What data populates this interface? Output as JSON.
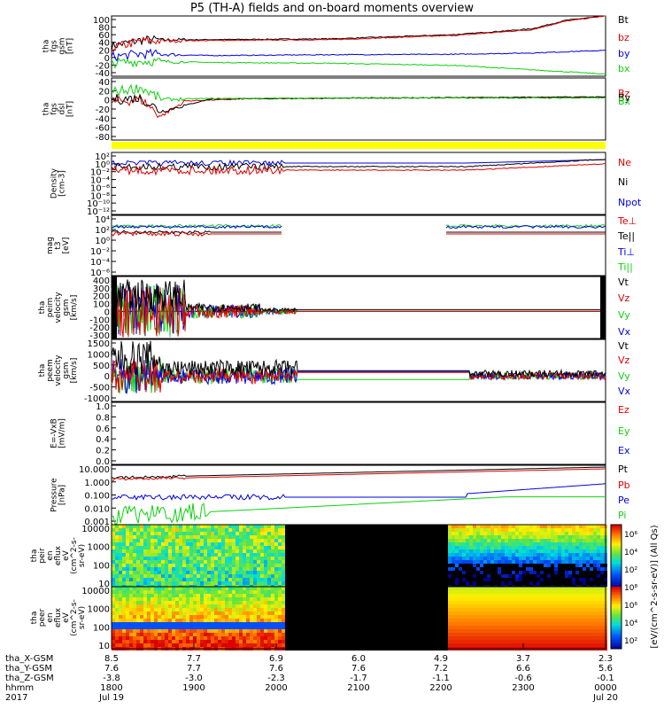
{
  "title": "P5 (TH-A) fields and on-board moments overview",
  "colors": {
    "black": "#000000",
    "red": "#e00000",
    "blue": "#0000e0",
    "green": "#10d010",
    "yellow": "#ffff00"
  },
  "chart_data": [
    {
      "type": "line",
      "panel": "fgs_gsm",
      "ylabel": [
        "tha",
        "fgs",
        "gsm",
        "[nT]"
      ],
      "ylim": [
        -40,
        100
      ],
      "ticks": [
        "100",
        "80",
        "60",
        "40",
        "20",
        "0",
        "-20",
        "-40"
      ],
      "series": [
        {
          "name": "Bt",
          "color": "black",
          "points": [
            [
              0,
              30
            ],
            [
              0.06,
              44
            ],
            [
              0.2,
              45
            ],
            [
              0.45,
              47
            ],
            [
              0.7,
              57
            ],
            [
              0.85,
              70
            ],
            [
              0.92,
              90
            ],
            [
              1,
              100
            ]
          ]
        },
        {
          "name": "bz",
          "color": "red",
          "points": [
            [
              0,
              25
            ],
            [
              0.06,
              42
            ],
            [
              0.2,
              43
            ],
            [
              0.45,
              45
            ],
            [
              0.7,
              55
            ],
            [
              0.85,
              68
            ],
            [
              0.92,
              88
            ],
            [
              1,
              100
            ]
          ]
        },
        {
          "name": "by",
          "color": "blue",
          "points": [
            [
              0,
              5
            ],
            [
              0.06,
              12
            ],
            [
              0.2,
              8
            ],
            [
              0.45,
              10
            ],
            [
              0.7,
              11
            ],
            [
              0.85,
              14
            ],
            [
              1,
              20
            ]
          ]
        },
        {
          "name": "bx",
          "color": "green",
          "points": [
            [
              0,
              -10
            ],
            [
              0.06,
              -5
            ],
            [
              0.2,
              -8
            ],
            [
              0.45,
              -10
            ],
            [
              0.7,
              -15
            ],
            [
              0.85,
              -25
            ],
            [
              1,
              -35
            ]
          ]
        }
      ]
    },
    {
      "type": "line",
      "panel": "fgs_dsl",
      "ylabel": [
        "tha",
        "fgs",
        "dsl",
        "[nT]"
      ],
      "ylim": [
        -90,
        40
      ],
      "ticks": [
        "40",
        "20",
        "0",
        "-20",
        "-40",
        "-60",
        "-80"
      ],
      "series": [
        {
          "name": "Bz",
          "color": "red",
          "points": [
            [
              0,
              -10
            ],
            [
              0.06,
              -5
            ],
            [
              0.1,
              -40
            ],
            [
              0.15,
              -8
            ],
            [
              0.3,
              -3
            ],
            [
              1,
              0
            ]
          ]
        },
        {
          "name": "By",
          "color": "black",
          "points": [
            [
              0,
              -5
            ],
            [
              0.06,
              -2
            ],
            [
              0.1,
              -30
            ],
            [
              0.2,
              -4
            ],
            [
              0.5,
              -2
            ],
            [
              1,
              0
            ]
          ]
        },
        {
          "name": "Bx",
          "color": "green",
          "points": [
            [
              0,
              10
            ],
            [
              0.06,
              20
            ],
            [
              0.1,
              -5
            ],
            [
              0.2,
              -3
            ],
            [
              0.5,
              -2
            ],
            [
              1,
              -2
            ]
          ]
        }
      ]
    },
    {
      "type": "line",
      "panel": "density",
      "ylabel": [
        "Density",
        "[cm-3]"
      ],
      "ticks": [
        "10²",
        "10⁰",
        "10⁻²",
        "10⁻⁴",
        "10⁻⁶",
        "10⁻⁸",
        "10⁻¹⁰",
        "10⁻¹²"
      ],
      "series": [
        {
          "name": "Ne",
          "color": "red"
        },
        {
          "name": "Ni",
          "color": "black"
        },
        {
          "name": "Npot",
          "color": "blue"
        }
      ]
    },
    {
      "type": "line",
      "panel": "temperature",
      "ylabel": [
        "mag",
        "t3",
        "[eV]"
      ],
      "ticks": [
        "10⁴",
        "10²",
        "10⁰",
        "10⁻²",
        "10⁻⁴",
        "10⁻⁶"
      ],
      "series": [
        {
          "name": "Te⊥",
          "color": "red"
        },
        {
          "name": "Te||",
          "color": "black"
        },
        {
          "name": "Ti⊥",
          "color": "blue"
        },
        {
          "name": "Ti||",
          "color": "green"
        }
      ]
    },
    {
      "type": "line",
      "panel": "peim_velocity",
      "ylabel": [
        "tha",
        "peim",
        "velocity",
        "gsm",
        "[km/s]"
      ],
      "ticks": [
        "400",
        "300",
        "200",
        "100",
        "0",
        "-100",
        "-200",
        "-300"
      ],
      "series": [
        {
          "name": "Vt",
          "color": "black"
        },
        {
          "name": "Vz",
          "color": "red"
        },
        {
          "name": "Vy",
          "color": "green"
        },
        {
          "name": "Vx",
          "color": "blue"
        }
      ]
    },
    {
      "type": "line",
      "panel": "peem_velocity",
      "ylabel": [
        "tha",
        "peem",
        "velocity",
        "gsm",
        "[km/s]"
      ],
      "ticks": [
        "1500",
        "1000",
        "500",
        "0",
        "-500",
        "-1000"
      ],
      "series": [
        {
          "name": "Vt",
          "color": "black"
        },
        {
          "name": "Vz",
          "color": "red"
        },
        {
          "name": "Vy",
          "color": "green"
        },
        {
          "name": "Vx",
          "color": "blue"
        }
      ]
    },
    {
      "type": "line",
      "panel": "efield",
      "ylabel": [
        "E=-VxB",
        "[mV/m]"
      ],
      "ticks": [
        "1.0",
        "0.8",
        "0.6",
        "0.4",
        "0.2",
        "0.0"
      ],
      "series": [
        {
          "name": "Ez",
          "color": "red"
        },
        {
          "name": "Ey",
          "color": "green"
        },
        {
          "name": "Ex",
          "color": "blue"
        }
      ]
    },
    {
      "type": "line",
      "panel": "pressure",
      "ylabel": [
        "Pressure",
        "[nPa]"
      ],
      "ticks": [
        "10.000",
        "1.000",
        "0.100",
        "0.010",
        "0.001"
      ],
      "series": [
        {
          "name": "Pt",
          "color": "black"
        },
        {
          "name": "Pb",
          "color": "red"
        },
        {
          "name": "Pe",
          "color": "blue"
        },
        {
          "name": "Pi",
          "color": "green"
        }
      ]
    },
    {
      "type": "heatmap",
      "panel": "peir",
      "ylabel": [
        "tha",
        "peir",
        "en",
        "eflux",
        "eV",
        "(cm^2-s-",
        "sr-eV)"
      ],
      "ticks": [
        "10000",
        "1000",
        "100",
        "10"
      ],
      "gaps": [
        [
          0.345,
          0.675
        ]
      ]
    },
    {
      "type": "heatmap",
      "panel": "peer",
      "ylabel": [
        "tha",
        "peer",
        "en",
        "eflux",
        "eV",
        "(cm^2-s-",
        "sr-eV)"
      ],
      "ticks": [
        "10000",
        "1000",
        "100",
        "10"
      ],
      "gaps": [
        [
          0.345,
          0.675
        ]
      ]
    }
  ],
  "colorbar": {
    "label": "[eV/(cm^2-s-sr-eV)] (All Qs)",
    "ticks": [
      "10⁶",
      "10⁴",
      "10²",
      "10⁸",
      "10⁶",
      "10⁴",
      "10²"
    ]
  },
  "xaxis": {
    "rows": [
      {
        "label": "tha_X-GSM",
        "values": [
          "8.5",
          "7.7",
          "6.9",
          "6.0",
          "4.9",
          "3.7",
          "2.3"
        ]
      },
      {
        "label": "tha_Y-GSM",
        "values": [
          "7.6",
          "7.7",
          "7.6",
          "7.6",
          "7.2",
          "6.6",
          "5.6"
        ]
      },
      {
        "label": "tha_Z-GSM",
        "values": [
          "-3.8",
          "-3.0",
          "-2.3",
          "-1.7",
          "-1.1",
          "-0.6",
          "-0.1"
        ]
      },
      {
        "label": "hhmm",
        "values": [
          "1800",
          "1900",
          "2000",
          "2100",
          "2200",
          "2300",
          "0000"
        ]
      },
      {
        "label": "2017",
        "values": [
          "Jul 19",
          "",
          "",
          "",
          "",
          "",
          "Jul 20"
        ]
      }
    ]
  }
}
